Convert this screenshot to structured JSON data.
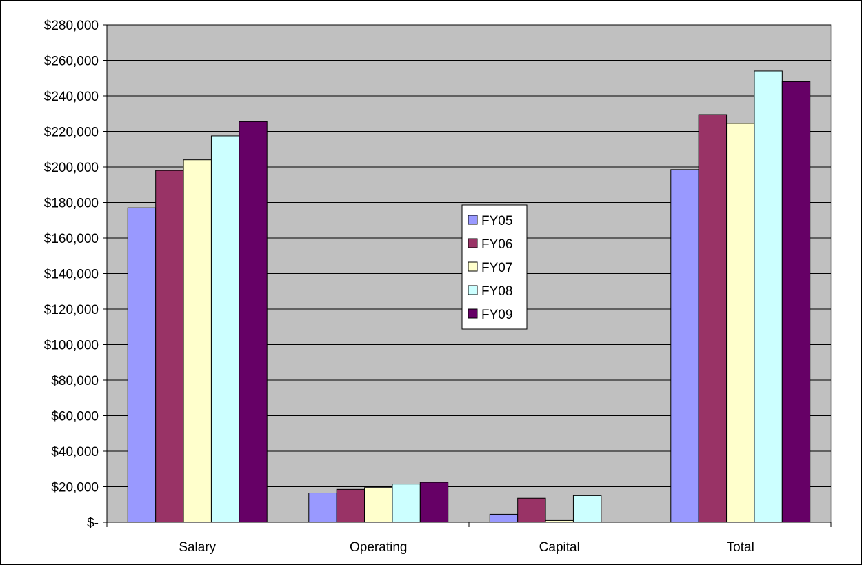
{
  "chart_data": {
    "type": "bar",
    "title": "",
    "xlabel": "",
    "ylabel": "",
    "categories": [
      "Salary",
      "Operating",
      "Capital",
      "Total"
    ],
    "series": [
      {
        "name": "FY05",
        "values": [
          177000,
          16500,
          4500,
          198500
        ],
        "color": "#9999FF"
      },
      {
        "name": "FY06",
        "values": [
          198000,
          18500,
          13500,
          229500
        ],
        "color": "#993366"
      },
      {
        "name": "FY07",
        "values": [
          204000,
          19500,
          1000,
          224500
        ],
        "color": "#FFFFCC"
      },
      {
        "name": "FY08",
        "values": [
          217500,
          21500,
          15000,
          254000
        ],
        "color": "#CCFFFF"
      },
      {
        "name": "FY09",
        "values": [
          225500,
          22500,
          0,
          248000
        ],
        "color": "#660066"
      }
    ],
    "ylim": [
      0,
      280000
    ],
    "yticks": [
      0,
      20000,
      40000,
      60000,
      80000,
      100000,
      120000,
      140000,
      160000,
      180000,
      200000,
      220000,
      240000,
      260000,
      280000
    ],
    "ytick_labels": [
      "$-",
      "$20,000",
      "$40,000",
      "$60,000",
      "$80,000",
      "$100,000",
      "$120,000",
      "$140,000",
      "$160,000",
      "$180,000",
      "$200,000",
      "$220,000",
      "$240,000",
      "$260,000",
      "$280,000"
    ],
    "grid": true,
    "legend_position": "center",
    "plot_background": "#C0C0C0"
  }
}
